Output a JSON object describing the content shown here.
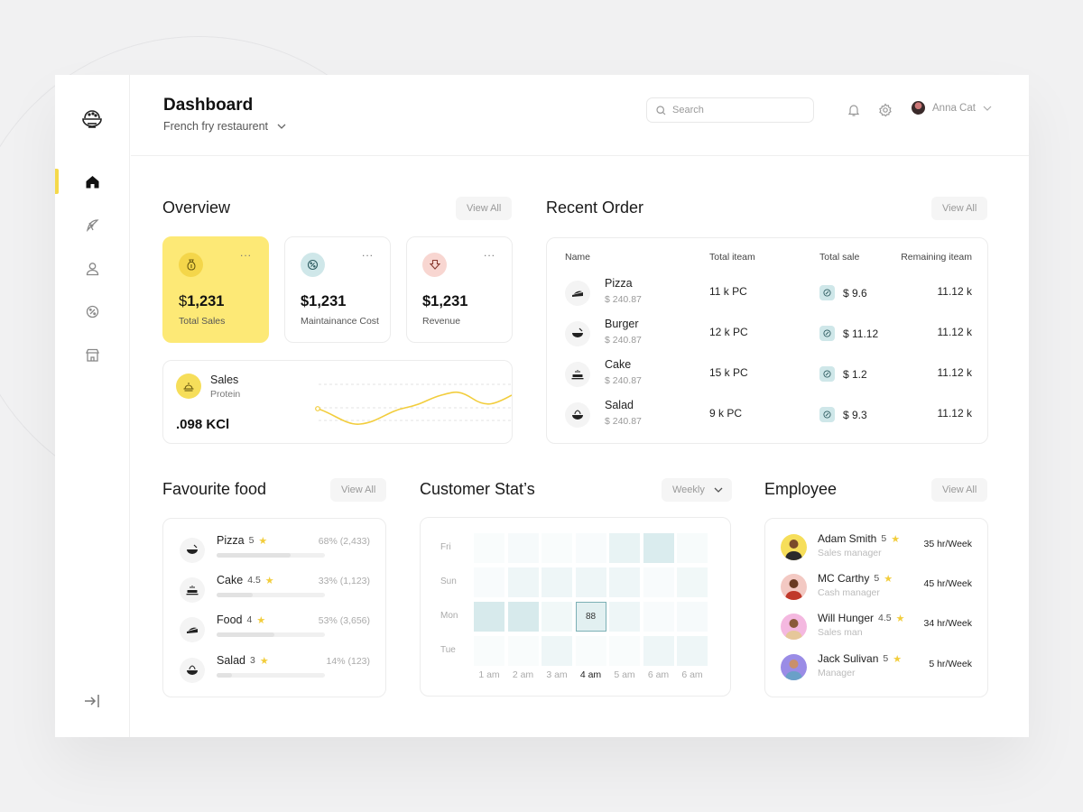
{
  "header": {
    "title": "Dashboard",
    "subtitle": "French fry restaurent",
    "search_placeholder": "Search",
    "user_name": "Anna Cat"
  },
  "sidebar": {
    "items": [
      {
        "name": "home",
        "icon": "home-icon",
        "active": true
      },
      {
        "name": "pizza",
        "icon": "pizza-icon",
        "active": false
      },
      {
        "name": "profile",
        "icon": "user-icon",
        "active": false
      },
      {
        "name": "discount",
        "icon": "discount-icon",
        "active": false
      },
      {
        "name": "store",
        "icon": "store-icon",
        "active": false
      }
    ]
  },
  "overview": {
    "title": "Overview",
    "view_all": "View All",
    "cards": [
      {
        "currency": "$",
        "value": "1,231",
        "label": "Total Sales",
        "icon": "money-bag-icon"
      },
      {
        "currency": "",
        "value": "$1,231",
        "label": "Maintainance Cost",
        "icon": "discount-icon"
      },
      {
        "currency": "",
        "value": "$1,231",
        "label": "Revenue",
        "icon": "arrow-down-box-icon"
      }
    ],
    "more": "...",
    "sales": {
      "title": "Sales",
      "subtitle": "Protein",
      "value": ".098 KCl"
    }
  },
  "recent_order": {
    "title": "Recent Order",
    "view_all": "View All",
    "columns": [
      "Name",
      "Total iteam",
      "Total sale",
      "Remaining iteam"
    ],
    "rows": [
      {
        "name": "Pizza",
        "price": "$  240.87",
        "items": "11 k PC",
        "sale": "$ 9.6",
        "remaining": "11.12 k",
        "icon": "pizza-slice-icon"
      },
      {
        "name": "Burger",
        "price": "$  240.87",
        "items": "12 k PC",
        "sale": "$ 11.12",
        "remaining": "11.12 k",
        "icon": "bowl-icon"
      },
      {
        "name": "Cake",
        "price": "$  240.87",
        "items": "15 k PC",
        "sale": "$ 1.2",
        "remaining": "11.12 k",
        "icon": "cake-icon"
      },
      {
        "name": "Salad",
        "price": "$  240.87",
        "items": "9 k PC",
        "sale": "$ 9.3",
        "remaining": "11.12 k",
        "icon": "salad-bowl-icon"
      }
    ]
  },
  "favourite_food": {
    "title": "Favourite food",
    "view_all": "View All",
    "items": [
      {
        "name": "Pizza",
        "rating": "5",
        "percent": "68% (2,433)",
        "fill": 0.68,
        "icon": "bowl-icon"
      },
      {
        "name": "Cake",
        "rating": "4.5",
        "percent": "33% (1,123)",
        "fill": 0.33,
        "icon": "cake-icon"
      },
      {
        "name": "Food",
        "rating": "4",
        "percent": "53% (3,656)",
        "fill": 0.53,
        "icon": "pizza-slice-icon"
      },
      {
        "name": "Salad",
        "rating": "3",
        "percent": "14% (123)",
        "fill": 0.14,
        "icon": "salad-bowl-icon"
      }
    ]
  },
  "customer_stats": {
    "title": "Customer Stat’s",
    "period": "Weekly",
    "days": [
      "Fri",
      "Sun",
      "Mon",
      "Tue"
    ],
    "hours": [
      "1 am",
      "2 am",
      "3 am",
      "4 am",
      "5 am",
      "6 am",
      "6 am"
    ],
    "active_hour_index": 3,
    "selected": {
      "row": 2,
      "col": 3,
      "value": "88"
    },
    "intensity": [
      [
        0.05,
        0.08,
        0.05,
        0.06,
        0.2,
        0.32,
        0.07
      ],
      [
        0.06,
        0.15,
        0.15,
        0.15,
        0.15,
        0.06,
        0.12
      ],
      [
        0.35,
        0.35,
        0.12,
        0.25,
        0.15,
        0.06,
        0.08
      ],
      [
        0.05,
        0.05,
        0.15,
        0.05,
        0.05,
        0.15,
        0.15
      ]
    ]
  },
  "employee": {
    "title": "Employee",
    "view_all": "View All",
    "people": [
      {
        "name": "Adam Smith",
        "rating": "5",
        "role": "Sales manager",
        "hours": "35 hr/Week",
        "avatar_bg": "#f6de5a"
      },
      {
        "name": "MC Carthy",
        "rating": "5",
        "role": "Cash manager",
        "hours": "45 hr/Week",
        "avatar_bg": "#f3c9c3"
      },
      {
        "name": "Will Hunger",
        "rating": "4.5",
        "role": "Sales man",
        "hours": "34 hr/Week",
        "avatar_bg": "#f4b8e0"
      },
      {
        "name": "Jack Sulivan",
        "rating": "5",
        "role": "Manager",
        "hours": "5 hr/Week",
        "avatar_bg": "#9a8ce6"
      }
    ]
  },
  "colors": {
    "accent_yellow": "#fde976",
    "teal": "#8cc3c9",
    "line_yellow": "#f2cd3c"
  }
}
